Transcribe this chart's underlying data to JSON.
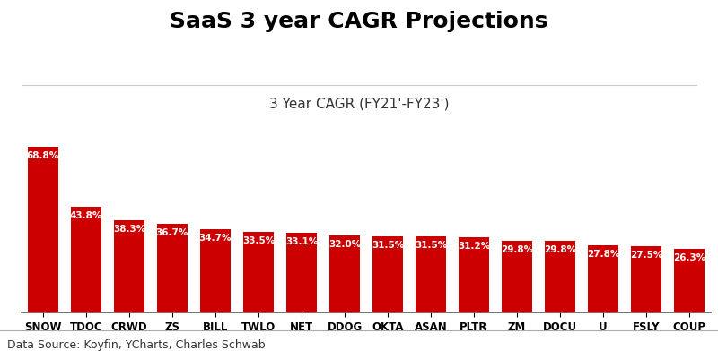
{
  "title": "SaaS 3 year CAGR Projections",
  "subtitle": "3 Year CAGR (FY21'-FY23')",
  "categories": [
    "SNOW",
    "TDOC",
    "CRWD",
    "ZS",
    "BILL",
    "TWLO",
    "NET",
    "DDOG",
    "OKTA",
    "ASAN",
    "PLTR",
    "ZM",
    "DOCU",
    "U",
    "FSLY",
    "COUP"
  ],
  "values": [
    68.8,
    43.8,
    38.3,
    36.7,
    34.7,
    33.5,
    33.1,
    32.0,
    31.5,
    31.5,
    31.2,
    29.8,
    29.8,
    27.8,
    27.5,
    26.3
  ],
  "bar_color": "#CC0000",
  "label_color": "#FFFFFF",
  "background_color": "#FFFFFF",
  "footer": "Data Source: Koyfin, YCharts, Charles Schwab",
  "title_fontsize": 18,
  "subtitle_fontsize": 11,
  "footer_fontsize": 9,
  "label_fontsize": 7.5,
  "tick_fontsize": 8.5,
  "ylim": [
    0,
    78
  ],
  "grid_color": "#CCCCCC",
  "grid_values": [
    0,
    10,
    20,
    30,
    40,
    50,
    60,
    70
  ]
}
